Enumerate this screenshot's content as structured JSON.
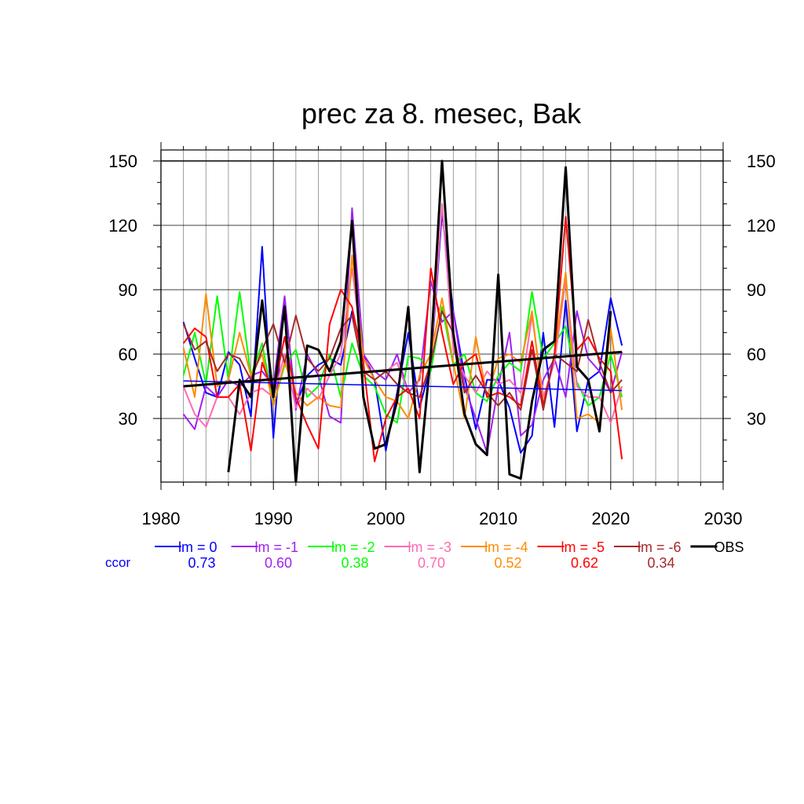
{
  "chart_data": {
    "type": "line",
    "title": "prec za 8. mesec, Bak",
    "xlim": [
      1980,
      2030
    ],
    "ylim": [
      0,
      155
    ],
    "x_ticks": [
      1980,
      1990,
      2000,
      2010,
      2020,
      2030
    ],
    "y_ticks": [
      30,
      60,
      90,
      120,
      150
    ],
    "x_tick_labels": [
      "1980",
      "1990",
      "2000",
      "2010",
      "2020",
      "2030"
    ],
    "y_tick_labels": [
      "30",
      "60",
      "90",
      "120",
      "150"
    ],
    "grid": true,
    "legend_position": "bottom",
    "ccor_label": "ccor",
    "x": [
      1982,
      1983,
      1984,
      1985,
      1986,
      1987,
      1988,
      1989,
      1990,
      1991,
      1992,
      1993,
      1994,
      1995,
      1996,
      1997,
      1998,
      1999,
      2000,
      2001,
      2002,
      2003,
      2004,
      2005,
      2006,
      2007,
      2008,
      2009,
      2010,
      2011,
      2012,
      2013,
      2014,
      2015,
      2016,
      2017,
      2018,
      2019,
      2020,
      2021
    ],
    "series": [
      {
        "name": "lm = 0",
        "color": "#0000ff",
        "ccor": "0.73",
        "values": [
          75,
          58,
          42,
          40,
          61,
          55,
          31,
          110,
          21,
          86,
          36,
          50,
          55,
          58,
          55,
          80,
          60,
          48,
          15,
          42,
          70,
          35,
          55,
          126,
          80,
          50,
          25,
          48,
          48,
          35,
          14,
          22,
          70,
          26,
          85,
          24,
          48,
          52,
          86,
          64
        ]
      },
      {
        "name": "lm = -1",
        "color": "#a020f0",
        "ccor": "0.60",
        "values": [
          32,
          25,
          45,
          40,
          48,
          45,
          50,
          52,
          45,
          87,
          34,
          60,
          50,
          31,
          28,
          128,
          60,
          52,
          48,
          60,
          42,
          48,
          94,
          75,
          80,
          45,
          30,
          14,
          45,
          70,
          22,
          27,
          48,
          58,
          40,
          80,
          58,
          52,
          42,
          61
        ]
      },
      {
        "name": "lm = -2",
        "color": "#00ff00",
        "ccor": "0.38",
        "values": [
          50,
          70,
          46,
          87,
          48,
          89,
          50,
          65,
          36,
          55,
          62,
          40,
          45,
          60,
          40,
          65,
          50,
          45,
          32,
          28,
          59,
          58,
          52,
          82,
          55,
          60,
          42,
          38,
          50,
          56,
          52,
          89,
          58,
          65,
          73,
          47,
          36,
          40,
          60,
          40
        ]
      },
      {
        "name": "lm = -3",
        "color": "#ff69b4",
        "ccor": "0.70",
        "values": [
          45,
          32,
          26,
          40,
          40,
          32,
          42,
          44,
          40,
          60,
          35,
          44,
          39,
          50,
          60,
          100,
          58,
          52,
          52,
          56,
          42,
          40,
          56,
          130,
          62,
          50,
          42,
          52,
          46,
          48,
          42,
          78,
          40,
          56,
          95,
          45,
          40,
          40,
          28,
          45
        ]
      },
      {
        "name": "lm = -4",
        "color": "#ff8c00",
        "ccor": "0.52",
        "values": [
          63,
          40,
          88,
          45,
          48,
          70,
          50,
          60,
          36,
          56,
          42,
          36,
          40,
          36,
          35,
          106,
          58,
          48,
          40,
          38,
          30,
          50,
          60,
          86,
          56,
          30,
          68,
          40,
          58,
          60,
          56,
          80,
          36,
          60,
          98,
          30,
          32,
          28,
          72,
          34
        ]
      },
      {
        "name": "lm = -5",
        "color": "#ff0000",
        "ccor": "0.62",
        "values": [
          65,
          72,
          68,
          40,
          40,
          46,
          15,
          56,
          42,
          68,
          40,
          27,
          16,
          74,
          90,
          82,
          56,
          10,
          30,
          40,
          44,
          30,
          100,
          70,
          46,
          56,
          60,
          40,
          42,
          40,
          36,
          66,
          36,
          60,
          124,
          62,
          68,
          58,
          52,
          11
        ]
      },
      {
        "name": "lm = -6",
        "color": "#a52a2a",
        "ccor": "0.34",
        "values": [
          74,
          62,
          66,
          52,
          60,
          58,
          48,
          62,
          74,
          56,
          78,
          58,
          52,
          58,
          72,
          78,
          52,
          48,
          52,
          46,
          42,
          40,
          56,
          80,
          70,
          42,
          50,
          42,
          36,
          42,
          34,
          62,
          34,
          60,
          56,
          52,
          76,
          56,
          42,
          48
        ]
      },
      {
        "name": "OBS",
        "color": "#000000",
        "ccor": "",
        "values": [
          null,
          null,
          null,
          null,
          5,
          48,
          40,
          85,
          40,
          82,
          0,
          64,
          62,
          52,
          66,
          122,
          40,
          16,
          18,
          38,
          82,
          5,
          60,
          150,
          70,
          32,
          18,
          13,
          97,
          4,
          2,
          38,
          62,
          66,
          147,
          54,
          48,
          24,
          80,
          null
        ]
      }
    ],
    "trend_lines": [
      {
        "name": "lm = 0 trend",
        "color": "#0000ff",
        "x": [
          1982,
          2021
        ],
        "values": [
          47.5,
          43
        ]
      },
      {
        "name": "OBS trend",
        "color": "#000000",
        "x": [
          1982,
          2021
        ],
        "values": [
          45,
          61
        ]
      }
    ]
  }
}
